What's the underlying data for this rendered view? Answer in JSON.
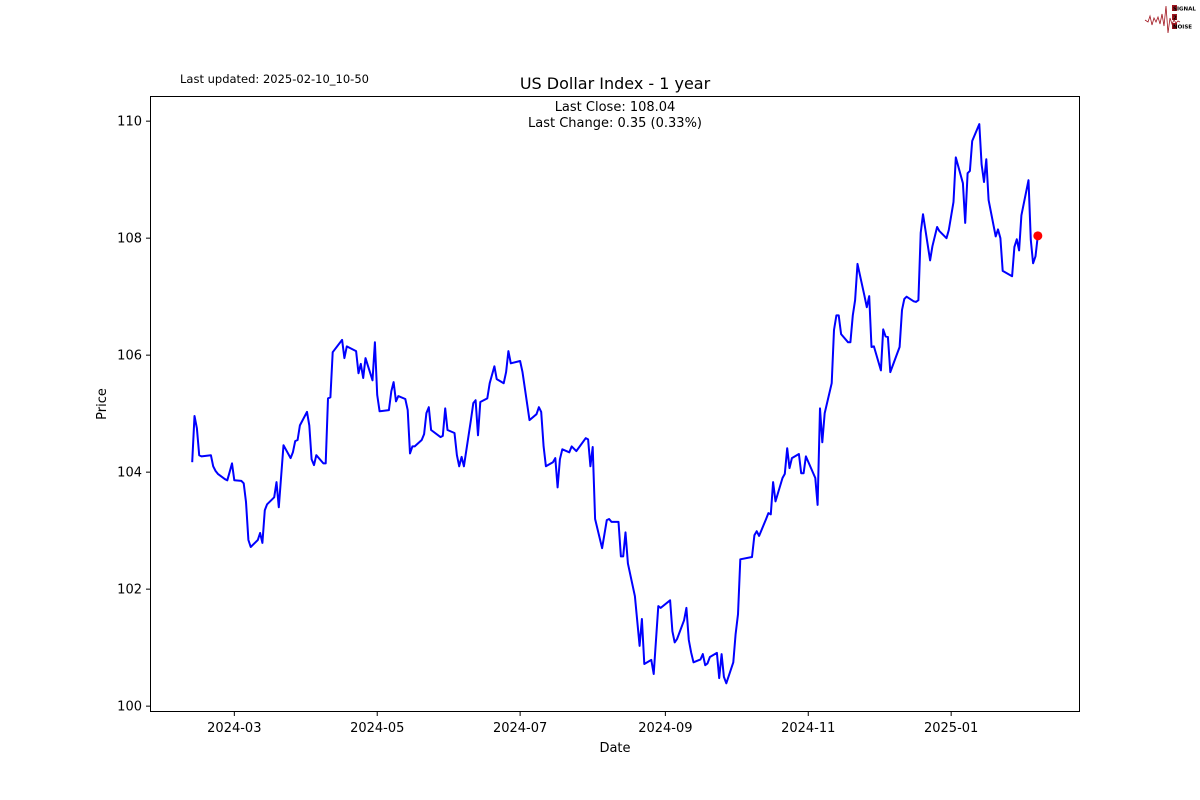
{
  "header": {
    "last_updated": "Last updated: 2025-02-10_10-50"
  },
  "logo": {
    "text": [
      "SIGNAL",
      "2",
      "NOISE"
    ],
    "color": "#a0141e"
  },
  "chart_data": {
    "type": "line",
    "title": "US Dollar Index - 1 year",
    "annotations": [
      "Last Close: 108.04",
      "Last Change: 0.35 (0.33%)"
    ],
    "xlabel": "Date",
    "ylabel": "Price",
    "xlim": [
      "2024-01-25",
      "2025-02-25"
    ],
    "ylim": [
      99.9,
      110.43
    ],
    "grid": false,
    "line_color": "#0000ff",
    "marker_color": "#ff0000",
    "x_ticks": [
      {
        "date": "2024-03-01",
        "label": "2024-03"
      },
      {
        "date": "2024-05-01",
        "label": "2024-05"
      },
      {
        "date": "2024-07-01",
        "label": "2024-07"
      },
      {
        "date": "2024-09-01",
        "label": "2024-09"
      },
      {
        "date": "2024-11-01",
        "label": "2024-11"
      },
      {
        "date": "2025-01-01",
        "label": "2025-01"
      }
    ],
    "y_ticks": [
      100,
      102,
      104,
      106,
      108,
      110
    ],
    "last_point": {
      "date": "2025-02-07",
      "value": 108.04
    },
    "x": [
      "2024-02-12",
      "2024-02-13",
      "2024-02-14",
      "2024-02-15",
      "2024-02-16",
      "2024-02-20",
      "2024-02-21",
      "2024-02-22",
      "2024-02-23",
      "2024-02-26",
      "2024-02-27",
      "2024-02-28",
      "2024-02-29",
      "2024-03-01",
      "2024-03-04",
      "2024-03-05",
      "2024-03-06",
      "2024-03-07",
      "2024-03-08",
      "2024-03-11",
      "2024-03-12",
      "2024-03-13",
      "2024-03-14",
      "2024-03-15",
      "2024-03-18",
      "2024-03-19",
      "2024-03-20",
      "2024-03-22",
      "2024-03-25",
      "2024-03-26",
      "2024-03-27",
      "2024-03-28",
      "2024-03-29",
      "2024-04-01",
      "2024-04-02",
      "2024-04-03",
      "2024-04-04",
      "2024-04-05",
      "2024-04-08",
      "2024-04-09",
      "2024-04-10",
      "2024-04-11",
      "2024-04-12",
      "2024-04-16",
      "2024-04-17",
      "2024-04-18",
      "2024-04-22",
      "2024-04-23",
      "2024-04-24",
      "2024-04-25",
      "2024-04-26",
      "2024-04-29",
      "2024-04-30",
      "2024-05-01",
      "2024-05-02",
      "2024-05-06",
      "2024-05-07",
      "2024-05-08",
      "2024-05-09",
      "2024-05-10",
      "2024-05-13",
      "2024-05-14",
      "2024-05-15",
      "2024-05-16",
      "2024-05-17",
      "2024-05-20",
      "2024-05-21",
      "2024-05-22",
      "2024-05-23",
      "2024-05-24",
      "2024-05-28",
      "2024-05-29",
      "2024-05-30",
      "2024-05-31",
      "2024-06-03",
      "2024-06-04",
      "2024-06-05",
      "2024-06-06",
      "2024-06-07",
      "2024-06-10",
      "2024-06-11",
      "2024-06-12",
      "2024-06-13",
      "2024-06-14",
      "2024-06-17",
      "2024-06-18",
      "2024-06-20",
      "2024-06-21",
      "2024-06-24",
      "2024-06-25",
      "2024-06-26",
      "2024-06-27",
      "2024-07-01",
      "2024-07-02",
      "2024-07-05",
      "2024-07-08",
      "2024-07-09",
      "2024-07-10",
      "2024-07-11",
      "2024-07-12",
      "2024-07-15",
      "2024-07-16",
      "2024-07-17",
      "2024-07-18",
      "2024-07-19",
      "2024-07-22",
      "2024-07-23",
      "2024-07-25",
      "2024-07-29",
      "2024-07-30",
      "2024-07-31",
      "2024-08-01",
      "2024-08-02",
      "2024-08-05",
      "2024-08-07",
      "2024-08-08",
      "2024-08-09",
      "2024-08-12",
      "2024-08-13",
      "2024-08-14",
      "2024-08-15",
      "2024-08-16",
      "2024-08-19",
      "2024-08-21",
      "2024-08-22",
      "2024-08-23",
      "2024-08-26",
      "2024-08-27",
      "2024-08-28",
      "2024-08-29",
      "2024-08-30",
      "2024-09-03",
      "2024-09-04",
      "2024-09-05",
      "2024-09-06",
      "2024-09-09",
      "2024-09-10",
      "2024-09-11",
      "2024-09-12",
      "2024-09-13",
      "2024-09-16",
      "2024-09-17",
      "2024-09-18",
      "2024-09-19",
      "2024-09-20",
      "2024-09-23",
      "2024-09-24",
      "2024-09-25",
      "2024-09-26",
      "2024-09-27",
      "2024-09-30",
      "2024-10-01",
      "2024-10-02",
      "2024-10-03",
      "2024-10-08",
      "2024-10-09",
      "2024-10-10",
      "2024-10-11",
      "2024-10-14",
      "2024-10-15",
      "2024-10-16",
      "2024-10-17",
      "2024-10-18",
      "2024-10-21",
      "2024-10-22",
      "2024-10-23",
      "2024-10-24",
      "2024-10-25",
      "2024-10-28",
      "2024-10-29",
      "2024-10-30",
      "2024-10-31",
      "2024-11-04",
      "2024-11-05",
      "2024-11-06",
      "2024-11-07",
      "2024-11-08",
      "2024-11-11",
      "2024-11-12",
      "2024-11-13",
      "2024-11-14",
      "2024-11-15",
      "2024-11-18",
      "2024-11-19",
      "2024-11-20",
      "2024-11-21",
      "2024-11-22",
      "2024-11-25",
      "2024-11-26",
      "2024-11-27",
      "2024-11-28",
      "2024-11-29",
      "2024-12-02",
      "2024-12-03",
      "2024-12-04",
      "2024-12-05",
      "2024-12-06",
      "2024-12-10",
      "2024-12-11",
      "2024-12-12",
      "2024-12-13",
      "2024-12-16",
      "2024-12-17",
      "2024-12-18",
      "2024-12-19",
      "2024-12-20",
      "2024-12-23",
      "2024-12-24",
      "2024-12-26",
      "2024-12-27",
      "2024-12-30",
      "2024-12-31",
      "2025-01-02",
      "2025-01-03",
      "2025-01-06",
      "2025-01-07",
      "2025-01-08",
      "2025-01-09",
      "2025-01-10",
      "2025-01-13",
      "2025-01-14",
      "2025-01-15",
      "2025-01-16",
      "2025-01-17",
      "2025-01-20",
      "2025-01-21",
      "2025-01-22",
      "2025-01-23",
      "2025-01-27",
      "2025-01-28",
      "2025-01-29",
      "2025-01-30",
      "2025-01-31",
      "2025-02-03",
      "2025-02-04",
      "2025-02-05",
      "2025-02-06",
      "2025-02-07"
    ],
    "y": [
      104.17,
      104.96,
      104.75,
      104.29,
      104.27,
      104.29,
      104.1,
      104.02,
      103.97,
      103.88,
      103.86,
      104.0,
      104.15,
      103.86,
      103.85,
      103.81,
      103.49,
      102.84,
      102.72,
      102.84,
      102.96,
      102.79,
      103.35,
      103.45,
      103.57,
      103.83,
      103.4,
      104.46,
      104.24,
      104.34,
      104.53,
      104.55,
      104.8,
      105.03,
      104.8,
      104.22,
      104.12,
      104.29,
      104.15,
      104.15,
      105.26,
      105.28,
      106.05,
      106.26,
      105.95,
      106.15,
      106.07,
      105.69,
      105.85,
      105.61,
      105.95,
      105.57,
      106.22,
      105.32,
      105.04,
      105.06,
      105.38,
      105.54,
      105.21,
      105.3,
      105.25,
      105.06,
      104.32,
      104.44,
      104.44,
      104.55,
      104.65,
      105.01,
      105.11,
      104.72,
      104.6,
      104.62,
      105.09,
      104.72,
      104.67,
      104.29,
      104.1,
      104.26,
      104.1,
      104.89,
      105.18,
      105.23,
      104.63,
      105.2,
      105.26,
      105.52,
      105.81,
      105.59,
      105.52,
      105.71,
      106.07,
      105.86,
      105.9,
      105.71,
      104.89,
      104.99,
      105.11,
      105.03,
      104.44,
      104.1,
      104.17,
      104.24,
      103.74,
      104.22,
      104.39,
      104.34,
      104.44,
      104.36,
      104.58,
      104.56,
      104.1,
      104.43,
      103.2,
      102.7,
      103.18,
      103.2,
      103.15,
      103.15,
      102.56,
      102.56,
      102.97,
      102.44,
      101.88,
      101.03,
      101.49,
      100.72,
      100.79,
      100.55,
      101.13,
      101.71,
      101.68,
      101.81,
      101.28,
      101.09,
      101.15,
      101.47,
      101.68,
      101.13,
      100.92,
      100.75,
      100.8,
      100.89,
      100.7,
      100.73,
      100.84,
      100.91,
      100.48,
      100.89,
      100.5,
      100.39,
      100.75,
      101.23,
      101.57,
      102.51,
      102.55,
      102.92,
      102.99,
      102.91,
      103.2,
      103.3,
      103.28,
      103.83,
      103.5,
      103.9,
      103.97,
      104.41,
      104.07,
      104.24,
      104.31,
      103.98,
      103.98,
      104.27,
      103.9,
      103.44,
      105.09,
      104.51,
      105.01,
      105.52,
      106.43,
      106.68,
      106.68,
      106.36,
      106.22,
      106.22,
      106.68,
      106.94,
      107.56,
      107.01,
      106.82,
      107.01,
      106.14,
      106.15,
      105.74,
      106.44,
      106.32,
      106.31,
      105.71,
      106.14,
      106.77,
      106.96,
      107.0,
      106.92,
      106.91,
      106.94,
      108.09,
      108.41,
      107.62,
      107.86,
      108.19,
      108.12,
      108.0,
      108.14,
      108.62,
      109.38,
      108.94,
      108.26,
      109.11,
      109.15,
      109.66,
      109.95,
      109.26,
      108.96,
      109.35,
      108.65,
      108.03,
      108.15,
      108.0,
      107.44,
      107.35,
      107.85,
      107.98,
      107.79,
      108.39,
      108.99,
      107.97,
      107.57,
      107.69,
      108.04
    ]
  }
}
